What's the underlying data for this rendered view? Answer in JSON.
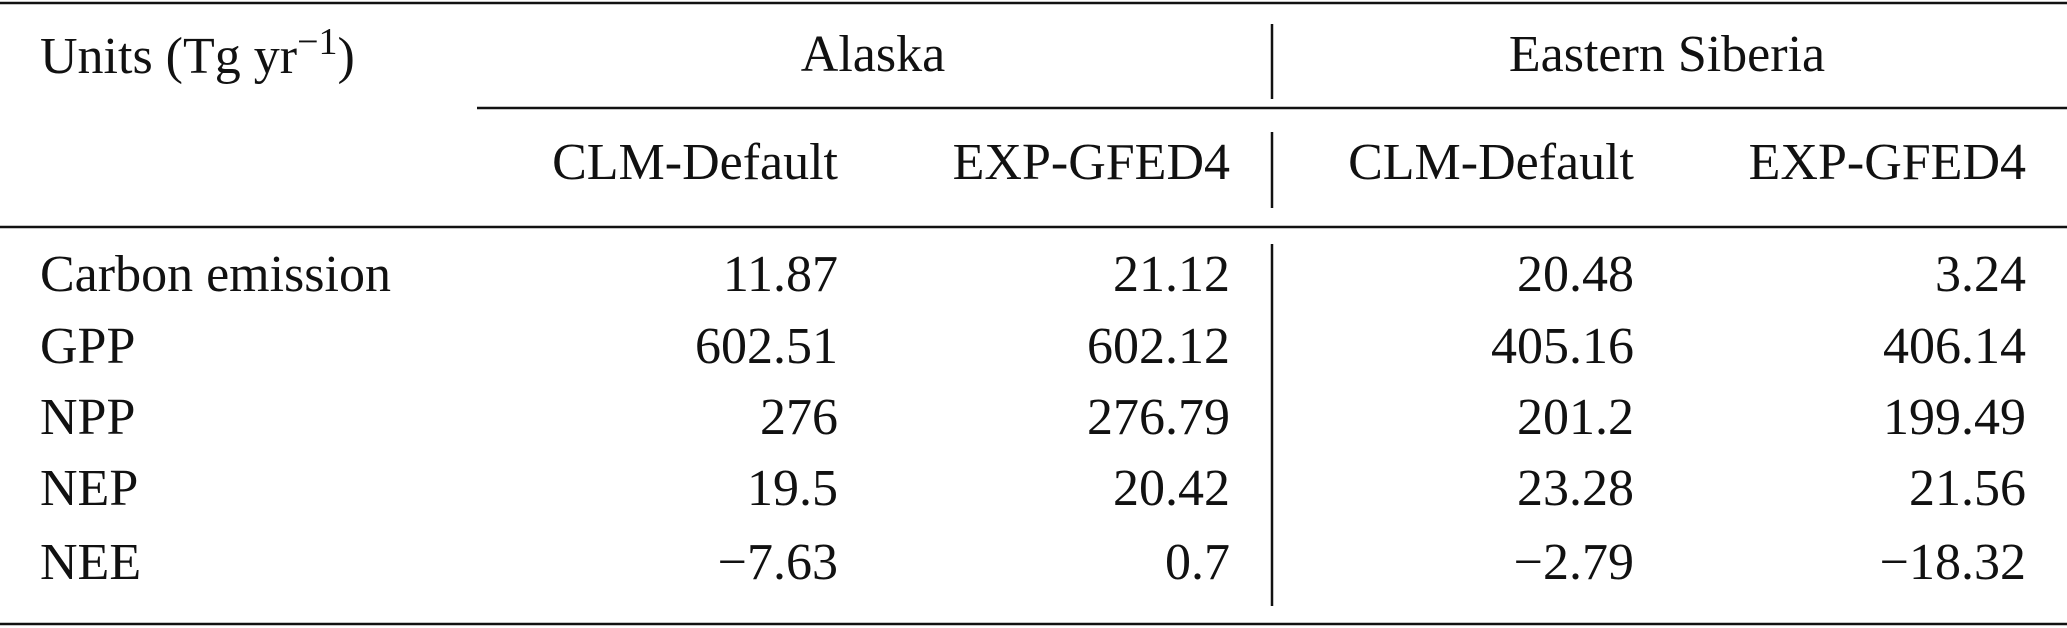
{
  "header": {
    "units": {
      "text": "Units (Tg yr",
      "exponent": "−1",
      "close": ")"
    },
    "groups": [
      "Alaska",
      "Eastern Siberia"
    ],
    "columns": [
      "CLM-Default",
      "EXP-GFED4",
      "CLM-Default",
      "EXP-GFED4"
    ]
  },
  "table": {
    "rows": [
      [
        "Carbon emission",
        "11.87",
        "21.12",
        "20.48",
        "3.24"
      ],
      [
        "GPP",
        "602.51",
        "602.12",
        "405.16",
        "406.14"
      ],
      [
        "NPP",
        "276",
        "276.79",
        "201.2",
        "199.49"
      ],
      [
        "NEP",
        "19.5",
        "20.42",
        "23.28",
        "21.56"
      ],
      [
        "NEE",
        "−7.63",
        "0.7",
        "−2.79",
        "−18.32"
      ]
    ]
  }
}
